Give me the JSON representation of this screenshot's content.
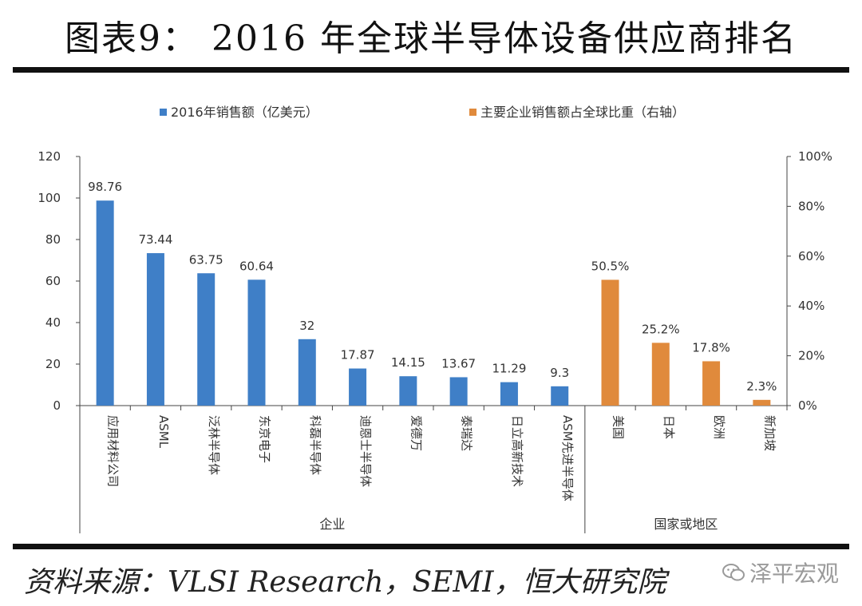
{
  "title": "图表9： 2016 年全球半导体设备供应商排名",
  "source": "资料来源：VLSI Research，SEMI，恒大研究院",
  "watermark": "泽平宏观",
  "colors": {
    "blue": "#3F7FC7",
    "orange": "#E08A3C",
    "axis": "#444444",
    "text": "#333333"
  },
  "chart_data": {
    "type": "bar",
    "legend": {
      "position": "top",
      "items": [
        "2016年销售额（亿美元）",
        "主要企业销售额占全球比重（右轴）"
      ]
    },
    "series": [
      {
        "name": "2016年销售额（亿美元）",
        "axis": "left",
        "categories": [
          "应用材料公司",
          "ASML",
          "泛林半导体",
          "东京电子",
          "科磊半导体",
          "迪恩士半导体",
          "爱德万",
          "泰瑞达",
          "日立高新技术",
          "ASM先进半导体"
        ],
        "values": [
          98.76,
          73.44,
          63.75,
          60.64,
          32,
          17.87,
          14.15,
          13.67,
          11.29,
          9.3
        ],
        "labels": [
          "98.76",
          "73.44",
          "63.75",
          "60.64",
          "32",
          "17.87",
          "14.15",
          "13.67",
          "11.29",
          "9.3"
        ]
      },
      {
        "name": "主要企业销售额占全球比重（右轴）",
        "axis": "right",
        "categories": [
          "美国",
          "日本",
          "欧洲",
          "新加坡"
        ],
        "values": [
          50.5,
          25.2,
          17.8,
          2.3
        ],
        "labels": [
          "50.5%",
          "25.2%",
          "17.8%",
          "2.3%"
        ]
      }
    ],
    "y_left": {
      "ylim": [
        0,
        120
      ],
      "ticks": [
        "0",
        "20",
        "40",
        "60",
        "80",
        "100",
        "120"
      ]
    },
    "y_right": {
      "ylim": [
        0,
        100
      ],
      "ticks": [
        "0%",
        "20%",
        "40%",
        "60%",
        "80%",
        "100%"
      ]
    },
    "groups": [
      "企业",
      "国家或地区"
    ]
  }
}
